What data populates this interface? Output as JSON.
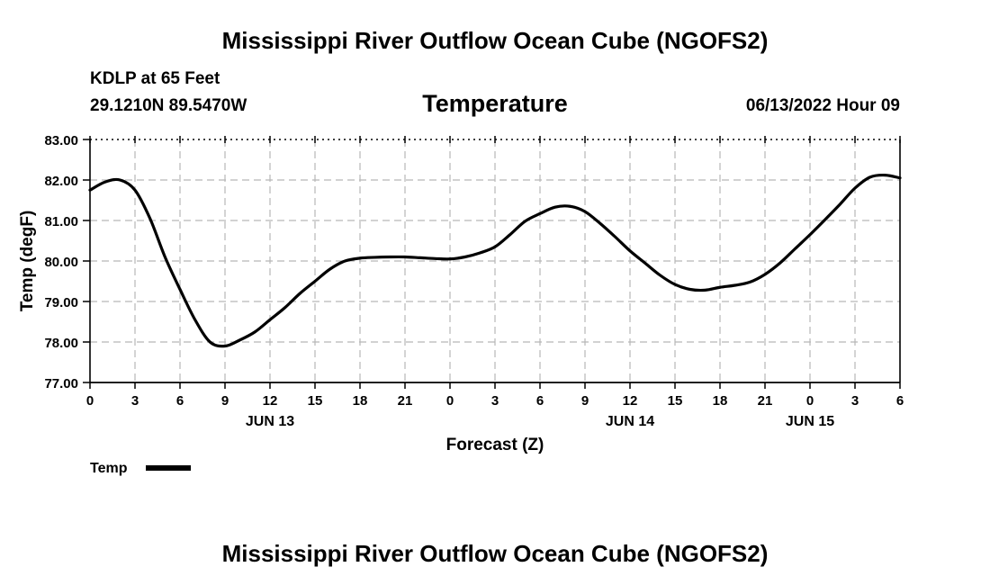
{
  "header": {
    "title": "Mississippi River Outflow Ocean Cube (NGOFS2)",
    "station": "KDLP at 65 Feet",
    "coordinates": "29.1210N  89.5470W",
    "date": "06/13/2022 Hour 09"
  },
  "footer": {
    "title": "Mississippi River Outflow Ocean Cube (NGOFS2)"
  },
  "chart_data": {
    "type": "line",
    "title": "Temperature",
    "xlabel": "Forecast (Z)",
    "ylabel": "Temp (degF)",
    "ylim": [
      77.0,
      83.0
    ],
    "yticks": [
      "77.00",
      "78.00",
      "79.00",
      "80.00",
      "81.00",
      "82.00",
      "83.00"
    ],
    "xlim": [
      0,
      54
    ],
    "xtick_hours": [
      0,
      3,
      6,
      9,
      12,
      15,
      18,
      21,
      24,
      27,
      30,
      33,
      36,
      39,
      42,
      45,
      48,
      51,
      54
    ],
    "xtick_labels": [
      "0",
      "3",
      "6",
      "9",
      "12",
      "15",
      "18",
      "21",
      "0",
      "3",
      "6",
      "9",
      "12",
      "15",
      "18",
      "21",
      "0",
      "3",
      "6"
    ],
    "day_labels": [
      {
        "hour": 12,
        "label": "JUN 13"
      },
      {
        "hour": 36,
        "label": "JUN 14"
      },
      {
        "hour": 48,
        "label": "JUN 15"
      }
    ],
    "grid": true,
    "legend": {
      "label": "Temp",
      "position": "bottom-left"
    },
    "series": [
      {
        "name": "Temp",
        "color": "#000000",
        "x": [
          0,
          1,
          2,
          3,
          4,
          5,
          6,
          7,
          8,
          9,
          10,
          11,
          12,
          13,
          14,
          15,
          16,
          17,
          18,
          19,
          20,
          21,
          22,
          23,
          24,
          25,
          26,
          27,
          28,
          29,
          30,
          31,
          32,
          33,
          34,
          35,
          36,
          37,
          38,
          39,
          40,
          41,
          42,
          43,
          44,
          45,
          46,
          47,
          48,
          49,
          50,
          51,
          52,
          53,
          54
        ],
        "values": [
          81.75,
          81.95,
          82.0,
          81.75,
          81.05,
          80.1,
          79.3,
          78.55,
          78.0,
          77.9,
          78.05,
          78.25,
          78.55,
          78.85,
          79.2,
          79.5,
          79.8,
          80.0,
          80.07,
          80.09,
          80.1,
          80.1,
          80.08,
          80.06,
          80.05,
          80.1,
          80.2,
          80.35,
          80.65,
          80.98,
          81.17,
          81.33,
          81.35,
          81.22,
          80.93,
          80.6,
          80.25,
          79.95,
          79.65,
          79.42,
          79.3,
          79.28,
          79.35,
          79.4,
          79.48,
          79.67,
          79.95,
          80.3,
          80.65,
          81.02,
          81.4,
          81.8,
          82.07,
          82.12,
          82.05
        ]
      }
    ]
  }
}
